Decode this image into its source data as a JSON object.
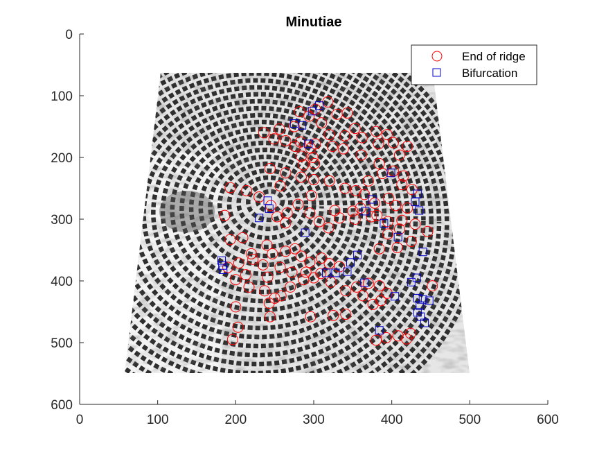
{
  "chart_data": {
    "type": "scatter",
    "title": "Minutiae",
    "xlabel": "",
    "ylabel": "",
    "xlim": [
      0,
      600
    ],
    "ylim": [
      0,
      600
    ],
    "y_reversed": true,
    "x_ticks": [
      "0",
      "100",
      "200",
      "300",
      "400",
      "500",
      "600"
    ],
    "y_ticks": [
      "0",
      "100",
      "200",
      "300",
      "400",
      "500",
      "600"
    ],
    "grid": false,
    "legend_position": "top-right",
    "background": "grayscale fingerprint image",
    "series": [
      {
        "name": "End of ridge",
        "marker": "circle",
        "color": "#ff0000",
        "points": [
          [
            318,
            110
          ],
          [
            302,
            122
          ],
          [
            282,
            126
          ],
          [
            294,
            133
          ],
          [
            330,
            130
          ],
          [
            343,
            128
          ],
          [
            310,
            144
          ],
          [
            275,
            150
          ],
          [
            256,
            154
          ],
          [
            236,
            160
          ],
          [
            320,
            163
          ],
          [
            340,
            165
          ],
          [
            362,
            168
          ],
          [
            249,
            170
          ],
          [
            264,
            173
          ],
          [
            283,
            175
          ],
          [
            302,
            178
          ],
          [
            324,
            182
          ],
          [
            338,
            186
          ],
          [
            353,
            153
          ],
          [
            380,
            158
          ],
          [
            394,
            163
          ],
          [
            402,
            176
          ],
          [
            383,
            178
          ],
          [
            420,
            182
          ],
          [
            410,
            196
          ],
          [
            276,
            182
          ],
          [
            296,
            185
          ],
          [
            361,
            196
          ],
          [
            284,
            198
          ],
          [
            299,
            200
          ],
          [
            287,
            212
          ],
          [
            301,
            210
          ],
          [
            244,
            218
          ],
          [
            264,
            225
          ],
          [
            284,
            232
          ],
          [
            300,
            236
          ],
          [
            320,
            238
          ],
          [
            340,
            250
          ],
          [
            354,
            254
          ],
          [
            370,
            238
          ],
          [
            365,
            260
          ],
          [
            378,
            274
          ],
          [
            396,
            266
          ],
          [
            413,
            244
          ],
          [
            402,
            222
          ],
          [
            388,
            226
          ],
          [
            384,
            210
          ],
          [
            415,
            230
          ],
          [
            426,
            252
          ],
          [
            405,
            278
          ],
          [
            420,
            282
          ],
          [
            413,
            302
          ],
          [
            430,
            308
          ],
          [
            446,
            320
          ],
          [
            193,
            249
          ],
          [
            214,
            254
          ],
          [
            230,
            264
          ],
          [
            257,
            246
          ],
          [
            245,
            278
          ],
          [
            266,
            290
          ],
          [
            253,
            296
          ],
          [
            264,
            306
          ],
          [
            186,
            294
          ],
          [
            280,
            276
          ],
          [
            297,
            262
          ],
          [
            295,
            290
          ],
          [
            307,
            304
          ],
          [
            319,
            314
          ],
          [
            327,
            286
          ],
          [
            333,
            298
          ],
          [
            350,
            287
          ],
          [
            353,
            300
          ],
          [
            381,
            294
          ],
          [
            395,
            304
          ],
          [
            410,
            316
          ],
          [
            425,
            336
          ],
          [
            407,
            346
          ],
          [
            384,
            348
          ],
          [
            395,
            324
          ],
          [
            360,
            282
          ],
          [
            374,
            296
          ],
          [
            193,
            333
          ],
          [
            209,
            330
          ],
          [
            220,
            356
          ],
          [
            240,
            342
          ],
          [
            247,
            356
          ],
          [
            264,
            352
          ],
          [
            276,
            348
          ],
          [
            284,
            360
          ],
          [
            295,
            370
          ],
          [
            310,
            363
          ],
          [
            320,
            372
          ],
          [
            333,
            377
          ],
          [
            309,
            388
          ],
          [
            290,
            386
          ],
          [
            272,
            386
          ],
          [
            257,
            378
          ],
          [
            235,
            374
          ],
          [
            222,
            365
          ],
          [
            204,
            371
          ],
          [
            190,
            378
          ],
          [
            213,
            390
          ],
          [
            241,
            394
          ],
          [
            200,
            398
          ],
          [
            217,
            410
          ],
          [
            237,
            416
          ],
          [
            250,
            428
          ],
          [
            270,
            410
          ],
          [
            287,
            398
          ],
          [
            300,
            395
          ],
          [
            322,
            402
          ],
          [
            341,
            416
          ],
          [
            355,
            410
          ],
          [
            370,
            404
          ],
          [
            363,
            424
          ],
          [
            376,
            438
          ],
          [
            386,
            432
          ],
          [
            384,
            408
          ],
          [
            452,
            408
          ],
          [
            200,
            442
          ],
          [
            243,
            436
          ],
          [
            258,
            424
          ],
          [
            244,
            458
          ],
          [
            296,
            458
          ],
          [
            325,
            456
          ],
          [
            341,
            454
          ],
          [
            394,
            420
          ],
          [
            203,
            475
          ],
          [
            196,
            495
          ],
          [
            380,
            496
          ],
          [
            393,
            492
          ],
          [
            408,
            489
          ],
          [
            424,
            485
          ],
          [
            419,
            494
          ]
        ]
      },
      {
        "name": "Bifurcation",
        "marker": "square",
        "color": "#0000cc",
        "points": [
          [
            307,
            116
          ],
          [
            298,
            125
          ],
          [
            275,
            145
          ],
          [
            285,
            148
          ],
          [
            293,
            178
          ],
          [
            241,
            270
          ],
          [
            243,
            283
          ],
          [
            230,
            298
          ],
          [
            289,
            322
          ],
          [
            399,
            225
          ],
          [
            433,
            259
          ],
          [
            430,
            272
          ],
          [
            435,
            286
          ],
          [
            375,
            268
          ],
          [
            366,
            287
          ],
          [
            390,
            307
          ],
          [
            408,
            329
          ],
          [
            440,
            353
          ],
          [
            182,
            367
          ],
          [
            183,
            375
          ],
          [
            184,
            382
          ],
          [
            328,
            387
          ],
          [
            316,
            387
          ],
          [
            356,
            358
          ],
          [
            347,
            370
          ],
          [
            343,
            385
          ],
          [
            365,
            403
          ],
          [
            432,
            395
          ],
          [
            425,
            402
          ],
          [
            404,
            425
          ],
          [
            433,
            428
          ],
          [
            440,
            430
          ],
          [
            448,
            432
          ],
          [
            436,
            440
          ],
          [
            433,
            451
          ],
          [
            437,
            458
          ],
          [
            442,
            468
          ],
          [
            384,
            480
          ]
        ]
      }
    ]
  }
}
